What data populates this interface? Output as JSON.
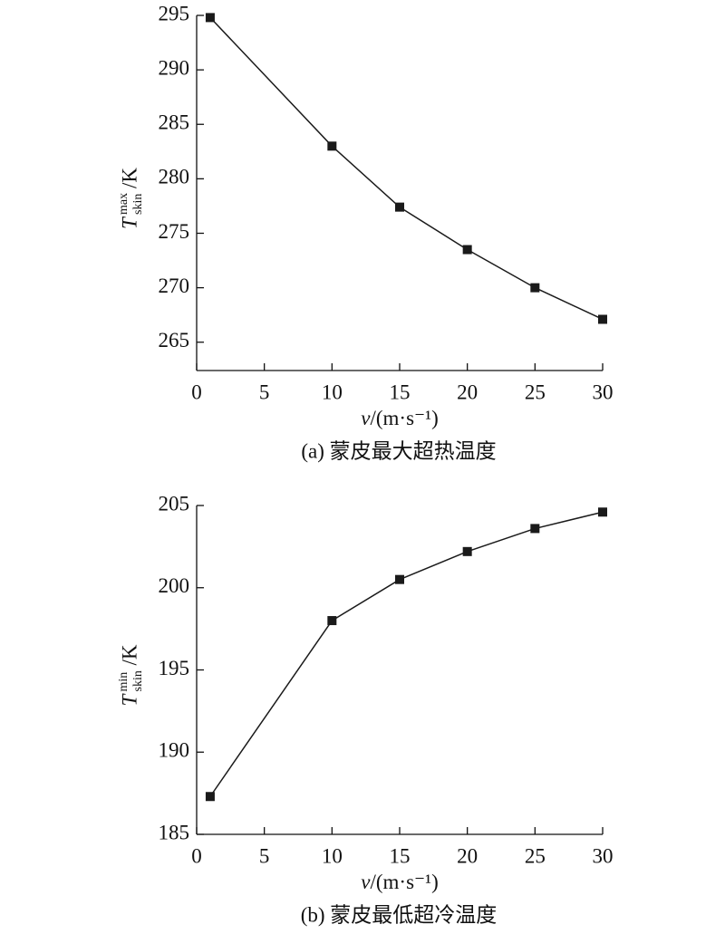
{
  "chart_data": [
    {
      "type": "line",
      "caption": "(a) 蒙皮最大超热温度",
      "x_label": {
        "symbol": "v",
        "unit": "/(m·s⁻¹)"
      },
      "y_label": {
        "symbol": "T",
        "sub": "skin",
        "sup": "max",
        "unit": "/K"
      },
      "x": [
        1,
        10,
        15,
        20,
        25,
        30
      ],
      "values": [
        294.8,
        283.0,
        277.4,
        273.5,
        270.0,
        267.1
      ],
      "color": "#1a1a1a",
      "marker": "square",
      "xlim": [
        0,
        30
      ],
      "xticks": [
        0,
        5,
        10,
        15,
        20,
        25,
        30
      ],
      "ylim": [
        262.4,
        295
      ],
      "yticks": [
        265,
        270,
        275,
        280,
        285,
        290,
        295
      ]
    },
    {
      "type": "line",
      "caption": "(b) 蒙皮最低超冷温度",
      "x_label": {
        "symbol": "v",
        "unit": "/(m·s⁻¹)"
      },
      "y_label": {
        "symbol": "T",
        "sub": "skin",
        "sup": "min",
        "unit": "/K"
      },
      "x": [
        1,
        10,
        15,
        20,
        25,
        30
      ],
      "values": [
        187.3,
        198.0,
        200.5,
        202.2,
        203.6,
        204.6
      ],
      "color": "#1a1a1a",
      "marker": "square",
      "xlim": [
        0,
        30
      ],
      "xticks": [
        0,
        5,
        10,
        15,
        20,
        25,
        30
      ],
      "ylim": [
        185,
        205
      ],
      "yticks": [
        185,
        190,
        195,
        200,
        205
      ]
    }
  ]
}
